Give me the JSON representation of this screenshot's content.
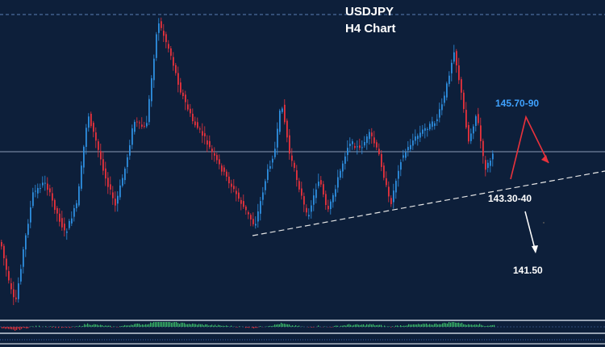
{
  "chart_data": {
    "type": "candlestick",
    "title": "USDJPY",
    "subtitle": "H4 Chart",
    "annotations": [
      "145.70-90",
      "143.30-40",
      "141.50"
    ],
    "colors": {
      "background": "#0d1f3a",
      "bull": "#2e8fe0",
      "bear": "#e8323c",
      "resistance_label": "#3fa2ff",
      "projection": "#e8323c"
    },
    "grid": false,
    "legend": "none"
  }
}
